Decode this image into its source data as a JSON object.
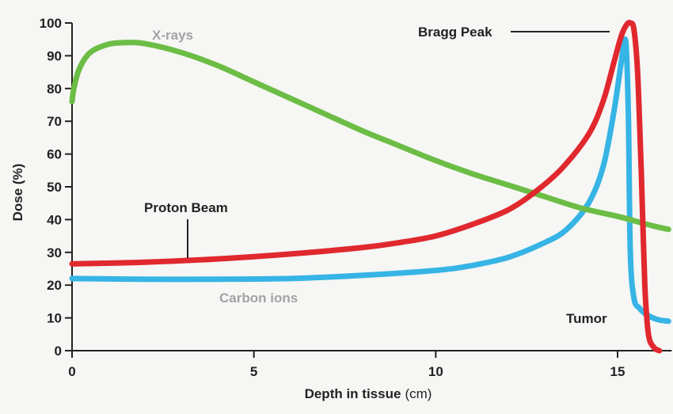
{
  "chart_data": {
    "type": "line",
    "xlabel_main": "Depth in tissue",
    "xlabel_unit": "(cm)",
    "ylabel": "Dose (%)",
    "xlim": [
      0,
      16.4
    ],
    "ylim": [
      0,
      100
    ],
    "x_ticks": [
      0,
      5,
      10,
      15
    ],
    "y_ticks": [
      0,
      10,
      20,
      30,
      40,
      50,
      60,
      70,
      80,
      90,
      100
    ],
    "grid": false,
    "series": [
      {
        "name": "X-rays",
        "color": "#6cbd45",
        "points": [
          [
            0,
            76
          ],
          [
            0.05,
            80
          ],
          [
            0.2,
            86
          ],
          [
            0.5,
            91
          ],
          [
            1.0,
            93.5
          ],
          [
            1.5,
            94
          ],
          [
            2.0,
            93.7
          ],
          [
            3.0,
            91
          ],
          [
            4.0,
            87
          ],
          [
            5.0,
            82
          ],
          [
            6.0,
            77
          ],
          [
            7.0,
            72
          ],
          [
            8.0,
            67
          ],
          [
            9.0,
            62.5
          ],
          [
            10.0,
            58
          ],
          [
            11.0,
            54
          ],
          [
            12.0,
            50.5
          ],
          [
            13.0,
            47
          ],
          [
            14.0,
            43.5
          ],
          [
            15.0,
            41
          ],
          [
            15.5,
            39.5
          ],
          [
            16.0,
            38
          ],
          [
            16.4,
            37
          ]
        ]
      },
      {
        "name": "Proton Beam",
        "color": "#e0282e",
        "points": [
          [
            0,
            26.5
          ],
          [
            2,
            27
          ],
          [
            4,
            28
          ],
          [
            6,
            29.5
          ],
          [
            8,
            31.5
          ],
          [
            9,
            33
          ],
          [
            10,
            35
          ],
          [
            11,
            38.5
          ],
          [
            12,
            43
          ],
          [
            12.8,
            49
          ],
          [
            13.5,
            56
          ],
          [
            14.2,
            66
          ],
          [
            14.6,
            76
          ],
          [
            14.9,
            88
          ],
          [
            15.1,
            96
          ],
          [
            15.25,
            99.5
          ],
          [
            15.35,
            100
          ],
          [
            15.45,
            98
          ],
          [
            15.55,
            85
          ],
          [
            15.65,
            55
          ],
          [
            15.75,
            20
          ],
          [
            15.85,
            5
          ],
          [
            16.0,
            1
          ],
          [
            16.15,
            0
          ]
        ]
      },
      {
        "name": "Carbon ions",
        "color": "#36b4e5",
        "points": [
          [
            0,
            22
          ],
          [
            2,
            21.8
          ],
          [
            4,
            21.8
          ],
          [
            6,
            22
          ],
          [
            8,
            23
          ],
          [
            10,
            24.5
          ],
          [
            11,
            26
          ],
          [
            12,
            28.5
          ],
          [
            13,
            33
          ],
          [
            13.6,
            37
          ],
          [
            14.2,
            45
          ],
          [
            14.6,
            56
          ],
          [
            14.9,
            73
          ],
          [
            15.1,
            88
          ],
          [
            15.2,
            95
          ],
          [
            15.25,
            90
          ],
          [
            15.3,
            70
          ],
          [
            15.35,
            30
          ],
          [
            15.45,
            16
          ],
          [
            15.6,
            13
          ],
          [
            15.8,
            11
          ],
          [
            16.1,
            9.5
          ],
          [
            16.4,
            9
          ]
        ]
      }
    ],
    "annotations": {
      "bragg_peak": "Bragg Peak",
      "tumor": "Tumor"
    }
  }
}
